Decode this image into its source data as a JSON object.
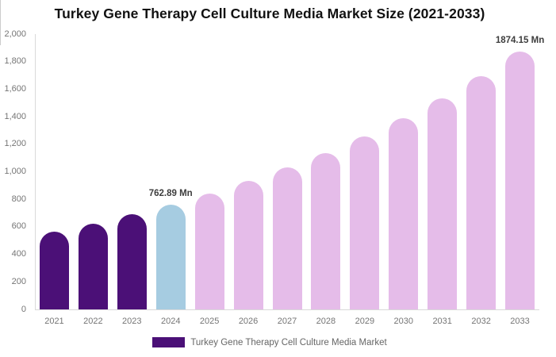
{
  "title": "Turkey Gene Therapy Cell Culture Media Market Size (2021-2033)",
  "chart_data": {
    "type": "bar",
    "title": "Turkey Gene Therapy Cell Culture Media Market Size (2021-2033)",
    "xlabel": "",
    "ylabel": "",
    "unit": "Mn",
    "ylim": [
      0,
      2000
    ],
    "grid": false,
    "legend_position": "bottom",
    "categories": [
      "2021",
      "2022",
      "2023",
      "2024",
      "2025",
      "2026",
      "2027",
      "2028",
      "2029",
      "2030",
      "2031",
      "2032",
      "2033"
    ],
    "values": [
      565.3,
      624.7,
      690.4,
      762.89,
      843.0,
      931.5,
      1029.4,
      1137.5,
      1256.9,
      1388.9,
      1534.7,
      1695.8,
      1874.15
    ],
    "bar_colors": [
      "#4B1077",
      "#4B1077",
      "#4B1077",
      "#A6CCE1",
      "#E5BCE9",
      "#E5BCE9",
      "#E5BCE9",
      "#E5BCE9",
      "#E5BCE9",
      "#E5BCE9",
      "#E5BCE9",
      "#E5BCE9",
      "#E5BCE9"
    ],
    "ytick_labels": [
      "2,000",
      "1,800",
      "1,600",
      "1,400",
      "1,200",
      "1,000",
      "800",
      "600",
      "400",
      "200",
      "0"
    ],
    "ytick_values": [
      2000,
      1800,
      1600,
      1400,
      1200,
      1000,
      800,
      600,
      400,
      200,
      0
    ],
    "annotations": [
      {
        "category": "2024",
        "index": 3,
        "text": "762.89 Mn"
      },
      {
        "category": "2033",
        "index": 12,
        "text": "1874.15 Mn"
      }
    ]
  },
  "colors": {
    "historical_bar": "#4B1077",
    "highlight_bar": "#A6CCE1",
    "forecast_bar": "#E5BCE9",
    "axis_line": "#d9d9d9",
    "axis_text": "#757575",
    "value_label_text": "#3d3d3d"
  },
  "legend": {
    "swatch_color": "#4B1077",
    "label": "Turkey Gene Therapy Cell Culture Media Market"
  }
}
